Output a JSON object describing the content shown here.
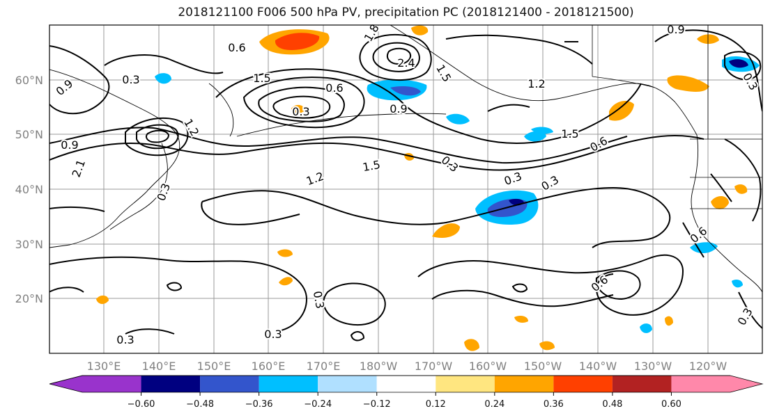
{
  "title": "2018121100 F006 500 hPa PV, precipitation PC (2018121400 - 2018121500)",
  "lat_labels": [
    "60°N",
    "50°N",
    "40°N",
    "30°N",
    "20°N"
  ],
  "lon_labels": [
    "130°E",
    "140°E",
    "150°E",
    "160°E",
    "170°E",
    "180°W",
    "170°W",
    "160°W",
    "150°W",
    "140°W",
    "130°W",
    "120°W"
  ],
  "colorbar": {
    "colors": [
      "#9933cc",
      "#000080",
      "#3355cc",
      "#00bfff",
      "#b0e0ff",
      "#ffffff",
      "#ffe680",
      "#ffa500",
      "#ff4000",
      "#b22222",
      "#ff88aa"
    ],
    "ticks": [
      "−0.60",
      "−0.48",
      "−0.36",
      "−0.24",
      "−0.12",
      "0.12",
      "0.24",
      "0.36",
      "0.48",
      "0.60"
    ]
  },
  "contour_labels": [
    "0.3",
    "0.6",
    "0.9",
    "1.2",
    "1.5",
    "1.8",
    "2.1",
    "2.4"
  ],
  "map_labels": [
    {
      "text": "0.3"
    },
    {
      "text": "0.9"
    },
    {
      "text": "0.6"
    },
    {
      "text": "1.5"
    },
    {
      "text": "0.6"
    },
    {
      "text": "0.3"
    },
    {
      "text": "1.2"
    },
    {
      "text": "0.9"
    },
    {
      "text": "2.4"
    },
    {
      "text": "1.8"
    },
    {
      "text": "1.5"
    },
    {
      "text": "0.9"
    },
    {
      "text": "1.2"
    },
    {
      "text": "1.5"
    },
    {
      "text": "0.6"
    },
    {
      "text": "1.2"
    },
    {
      "text": "1.5"
    },
    {
      "text": "0.3"
    },
    {
      "text": "0.3"
    },
    {
      "text": "0.3"
    },
    {
      "text": "0.6"
    },
    {
      "text": "0.3"
    },
    {
      "text": "0.3"
    },
    {
      "text": "0.3"
    },
    {
      "text": "0.3"
    },
    {
      "text": "0.3"
    },
    {
      "text": "0.6"
    },
    {
      "text": "0.3"
    },
    {
      "text": "0.9"
    },
    {
      "text": "2.1"
    }
  ]
}
